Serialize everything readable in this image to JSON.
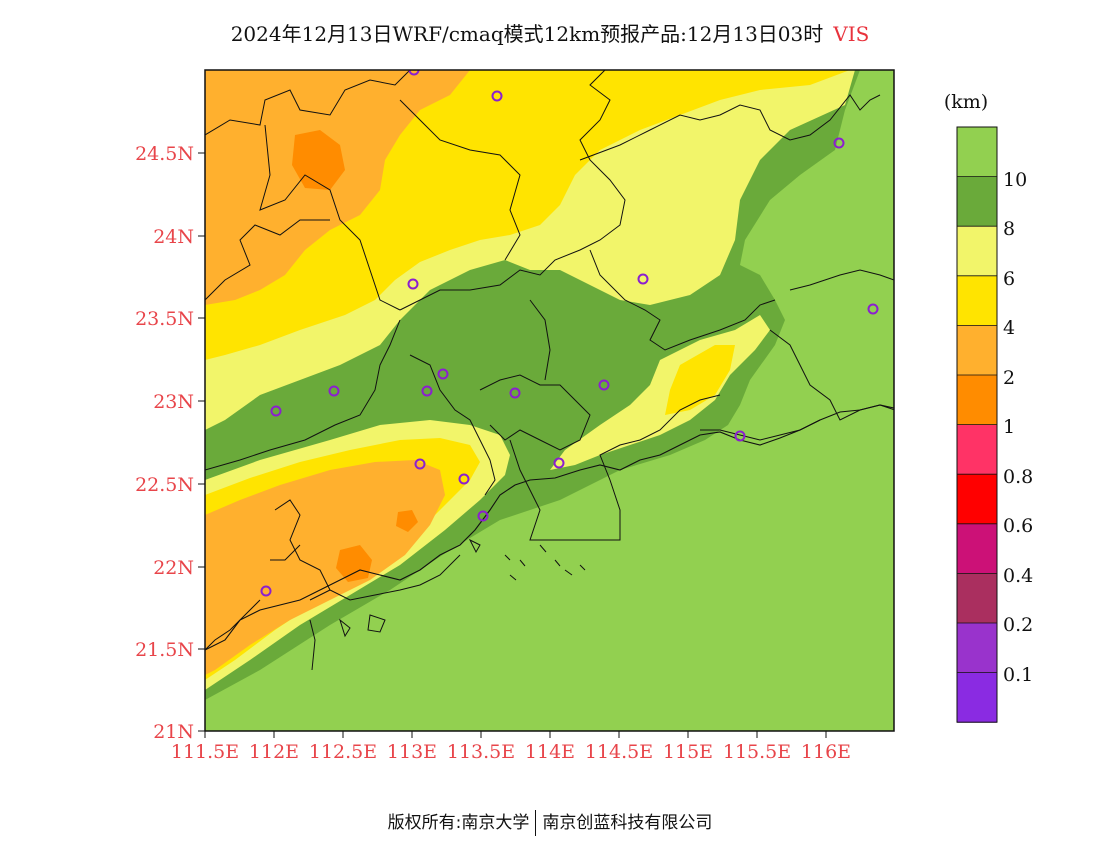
{
  "title": {
    "main": "2024年12月13日WRF/cmaq模式12km预报产品:12月13日03时",
    "variable": "VIS"
  },
  "colorbar": {
    "unit": "(km)",
    "labels": [
      "10",
      "8",
      "6",
      "4",
      "2",
      "1",
      "0.8",
      "0.6",
      "0.4",
      "0.2",
      "0.1"
    ],
    "colors": [
      "#92d050",
      "#6aaa3a",
      "#f2f56a",
      "#ffe400",
      "#ffb02e",
      "#ff8c00",
      "#ff3366",
      "#ff0000",
      "#cc1177",
      "#aa2f5f",
      "#9933cc",
      "#8a2be2"
    ]
  },
  "map": {
    "y_ticks": [
      "24.5N",
      "24N",
      "23.5N",
      "23N",
      "22.5N",
      "22N",
      "21.5N",
      "21N"
    ],
    "x_ticks": [
      "111.5E",
      "112E",
      "112.5E",
      "113E",
      "113.5E",
      "114E",
      "114.5E",
      "115E",
      "115.5E",
      "116E"
    ],
    "station_color": "#8b1fcf"
  },
  "footer": {
    "left": "版权所有:南京大学",
    "right": "南京创蓝科技有限公司"
  }
}
